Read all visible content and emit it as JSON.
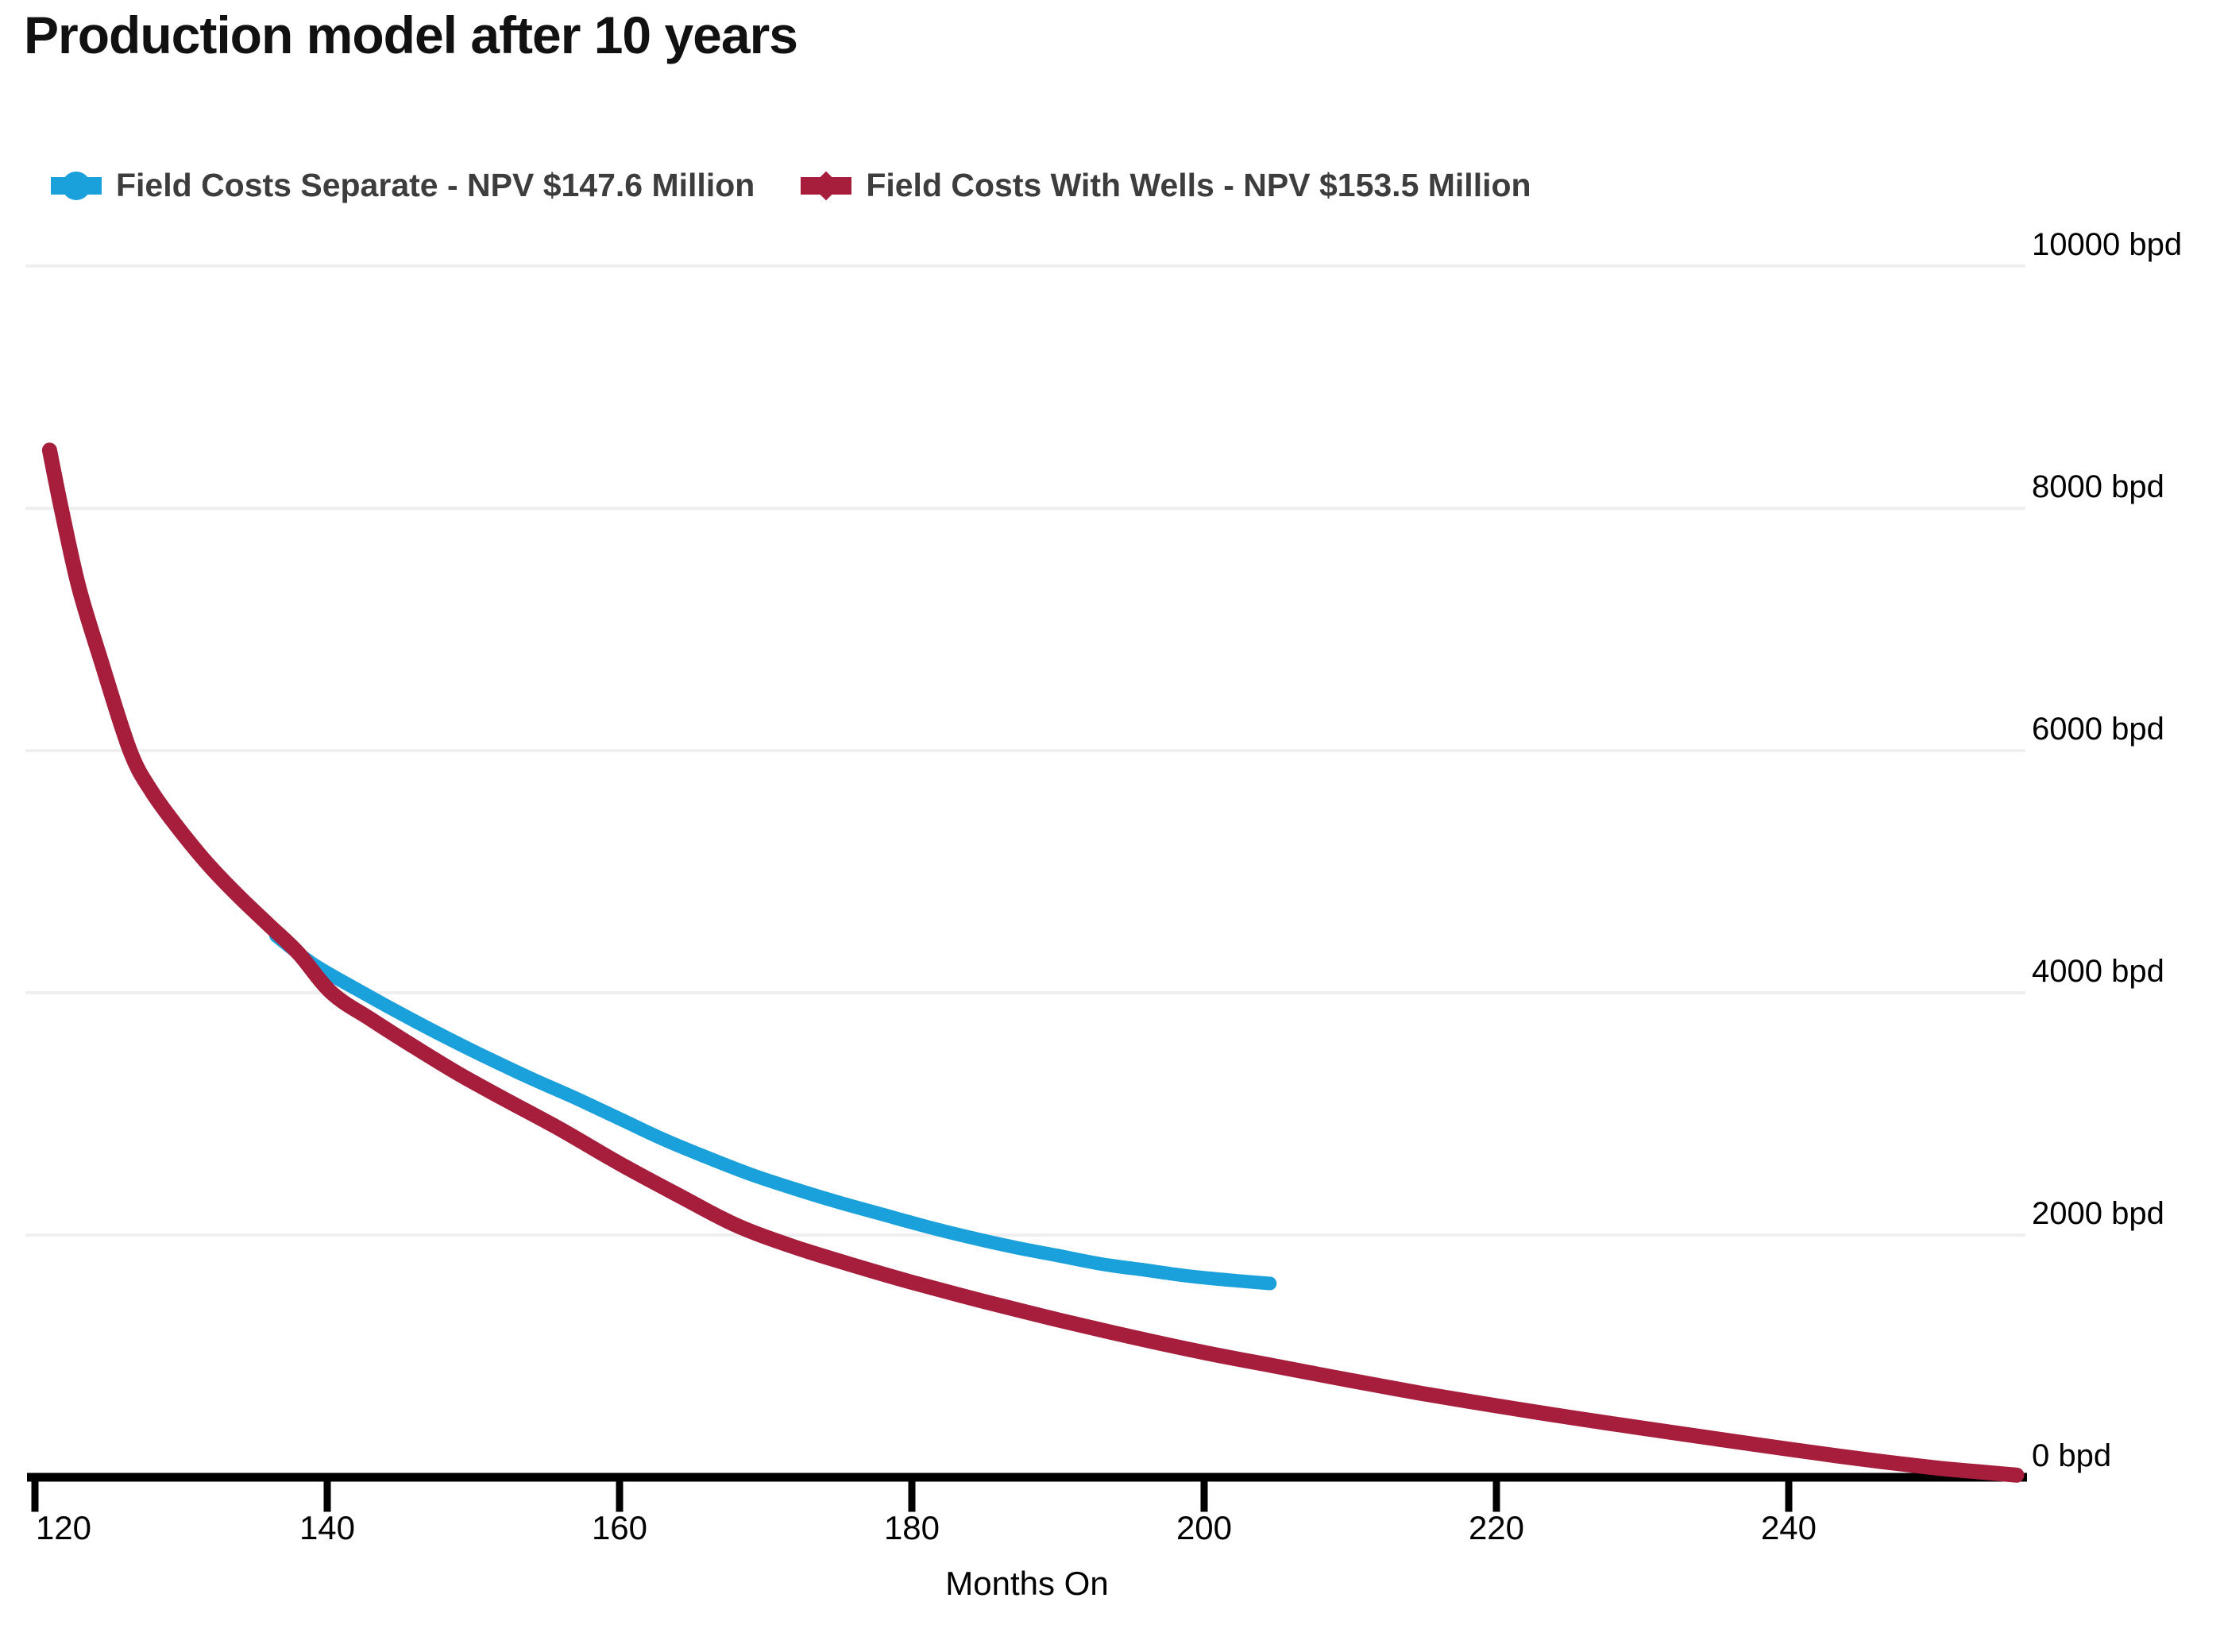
{
  "title": "Production model after 10 years",
  "legend": {
    "items": [
      {
        "label": "Field Costs Separate - NPV $147.6 Million",
        "color": "#1aa0da",
        "marker": "line-circle"
      },
      {
        "label": "Field Costs With Wells - NPV $153.5 Million",
        "color": "#a61e3c",
        "marker": "line-diamond"
      }
    ],
    "text_color": "#3d3d3d"
  },
  "chart_data": {
    "type": "line",
    "title": "Production model after 10 years",
    "xlabel": "Months On",
    "ylabel": "",
    "y_unit": "bpd",
    "xlim": [
      119.2,
      256.3
    ],
    "ylim": [
      0,
      10000
    ],
    "grid": "horizontal",
    "grid_color": "#efefef",
    "axis_color": "#000000",
    "background": "#ffffff",
    "legend_position": "top-left",
    "x_ticks": [
      120,
      140,
      160,
      180,
      200,
      220,
      240
    ],
    "x_tick_labels": [
      "120",
      "140",
      "160",
      "180",
      "200",
      "220",
      "240"
    ],
    "y_ticks": [
      0,
      2000,
      4000,
      6000,
      8000,
      10000
    ],
    "y_tick_labels": [
      "0 bpd",
      "2000 bpd",
      "4000 bpd",
      "6000 bpd",
      "8000 bpd",
      "10000 bpd"
    ],
    "series": [
      {
        "name": "Field Costs Separate - NPV $147.6 Million",
        "color": "#1aa0da",
        "points": [
          [
            136.5,
            4470
          ],
          [
            139,
            4240
          ],
          [
            142,
            4030
          ],
          [
            145,
            3830
          ],
          [
            148,
            3640
          ],
          [
            151,
            3460
          ],
          [
            154,
            3290
          ],
          [
            157,
            3130
          ],
          [
            160,
            2960
          ],
          [
            163,
            2790
          ],
          [
            166,
            2640
          ],
          [
            169,
            2500
          ],
          [
            172,
            2380
          ],
          [
            175,
            2270
          ],
          [
            178,
            2170
          ],
          [
            181,
            2070
          ],
          [
            184,
            1980
          ],
          [
            187,
            1900
          ],
          [
            190,
            1830
          ],
          [
            193,
            1760
          ],
          [
            196,
            1710
          ],
          [
            199,
            1660
          ],
          [
            202,
            1625
          ],
          [
            204.5,
            1600
          ]
        ]
      },
      {
        "name": "Field Costs With Wells - NPV $153.5 Million",
        "color": "#a61e3c",
        "points": [
          [
            121,
            8480
          ],
          [
            121.8,
            8000
          ],
          [
            123,
            7350
          ],
          [
            124.5,
            6750
          ],
          [
            126.5,
            6000
          ],
          [
            128,
            5660
          ],
          [
            130,
            5330
          ],
          [
            132,
            5040
          ],
          [
            134,
            4790
          ],
          [
            136,
            4560
          ],
          [
            138,
            4330
          ],
          [
            140.3,
            4000
          ],
          [
            143,
            3780
          ],
          [
            146,
            3550
          ],
          [
            149,
            3330
          ],
          [
            152,
            3130
          ],
          [
            156,
            2870
          ],
          [
            160,
            2590
          ],
          [
            164,
            2330
          ],
          [
            168,
            2080
          ],
          [
            172,
            1900
          ],
          [
            176,
            1750
          ],
          [
            180,
            1610
          ],
          [
            185,
            1450
          ],
          [
            190,
            1300
          ],
          [
            195,
            1160
          ],
          [
            200,
            1030
          ],
          [
            205,
            915
          ],
          [
            210,
            800
          ],
          [
            215,
            690
          ],
          [
            220,
            590
          ],
          [
            225,
            495
          ],
          [
            230,
            405
          ],
          [
            235,
            318
          ],
          [
            240,
            232
          ],
          [
            245,
            150
          ],
          [
            250,
            78
          ],
          [
            253,
            45
          ],
          [
            255.6,
            18
          ]
        ]
      }
    ]
  }
}
